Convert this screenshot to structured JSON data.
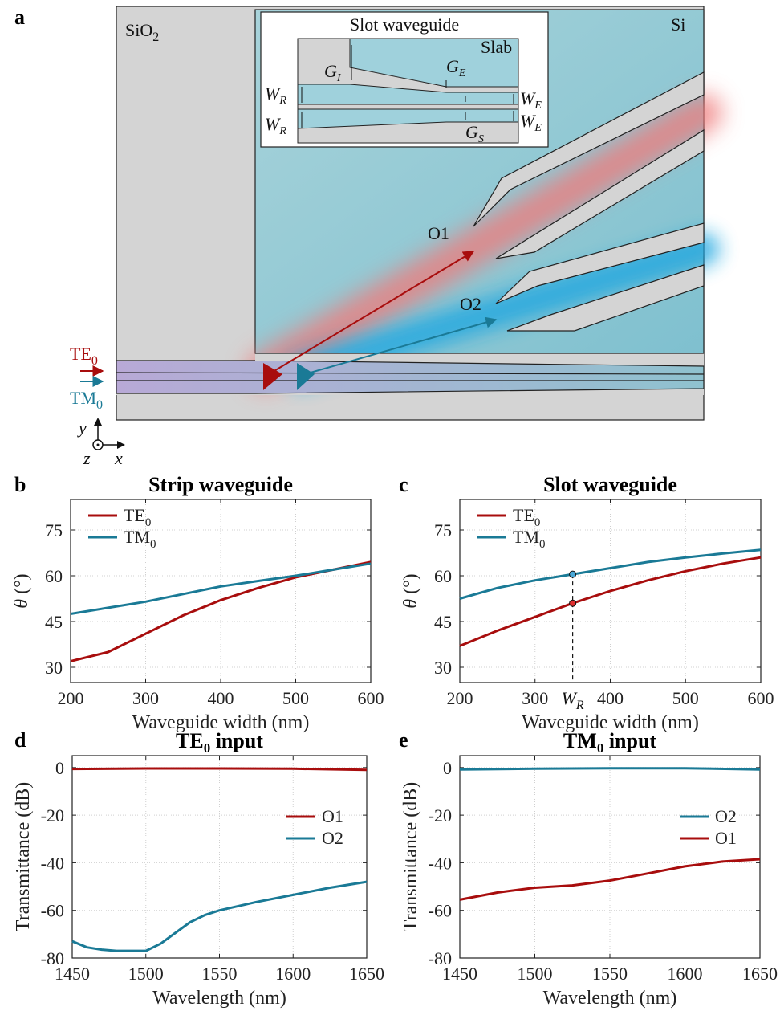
{
  "panels": {
    "a": "a",
    "b": "b",
    "c": "c",
    "d": "d",
    "e": "e"
  },
  "schematic": {
    "sio2": "SiO",
    "sio2_sub": "2",
    "si": "Si",
    "inset_title": "Slot waveguide",
    "slab": "Slab",
    "gi": "G",
    "gi_sub": "I",
    "ge": "G",
    "ge_sub": "E",
    "gs": "G",
    "gs_sub": "S",
    "wr": "W",
    "wr_sub": "R",
    "we": "W",
    "we_sub": "E",
    "o1": "O1",
    "o2": "O2",
    "te_in": "TE",
    "te_in_sub": "0",
    "tm_in": "TM",
    "tm_in_sub": "0",
    "axis_y": "y",
    "axis_z": "z",
    "axis_x": "x"
  },
  "colors": {
    "te": "#a80d0d",
    "tm": "#1a7a96",
    "si_fill": "#8ec8d4",
    "sio2_fill": "#d4d4d4",
    "grid": "#d0d0d0"
  },
  "chart_data": [
    {
      "id": "b",
      "type": "line",
      "title": "Strip waveguide",
      "xlabel": "Waveguide width (nm)",
      "ylabel": "θ (°)",
      "xlim": [
        200,
        600
      ],
      "ylim": [
        25,
        85
      ],
      "xticks": [
        200,
        300,
        400,
        500,
        600
      ],
      "yticks": [
        30,
        45,
        60,
        75
      ],
      "grid": true,
      "legend": "top-left",
      "series": [
        {
          "name": "TE",
          "name_sub": "0",
          "color": "#a80d0d",
          "x": [
            200,
            250,
            300,
            350,
            400,
            450,
            500,
            550,
            600
          ],
          "y": [
            32,
            35,
            41,
            47,
            52,
            56,
            59.5,
            62,
            64.5
          ]
        },
        {
          "name": "TM",
          "name_sub": "0",
          "color": "#1a7a96",
          "x": [
            200,
            250,
            300,
            350,
            400,
            450,
            500,
            550,
            600
          ],
          "y": [
            47.5,
            49.5,
            51.5,
            54,
            56.5,
            58.3,
            60,
            62,
            64
          ]
        }
      ]
    },
    {
      "id": "c",
      "type": "line",
      "title": "Slot waveguide",
      "xlabel": "Waveguide width (nm)",
      "ylabel": "θ (°)",
      "xlim": [
        200,
        600
      ],
      "ylim": [
        25,
        85
      ],
      "xticks": [
        200,
        300,
        400,
        500,
        600
      ],
      "xticklabels": [
        "200",
        "300",
        "400",
        "500",
        "600"
      ],
      "yticks": [
        30,
        45,
        60,
        75
      ],
      "grid": true,
      "legend": "top-left",
      "marker_x": 350,
      "marker_label": "W",
      "marker_label_sub": "R",
      "series": [
        {
          "name": "TE",
          "name_sub": "0",
          "color": "#a80d0d",
          "x": [
            200,
            250,
            300,
            350,
            400,
            450,
            500,
            550,
            600
          ],
          "y": [
            37,
            42,
            46.5,
            51,
            55,
            58.5,
            61.5,
            64,
            66
          ]
        },
        {
          "name": "TM",
          "name_sub": "0",
          "color": "#1a7a96",
          "x": [
            200,
            250,
            300,
            350,
            400,
            450,
            500,
            550,
            600
          ],
          "y": [
            52.5,
            56,
            58.5,
            60.5,
            62.5,
            64.5,
            66,
            67.3,
            68.5
          ]
        }
      ]
    },
    {
      "id": "d",
      "type": "line",
      "title": "TE",
      "title_sub": "0",
      "title_rest": " input",
      "xlabel": "Wavelength (nm)",
      "ylabel": "Transmittance (dB)",
      "xlim": [
        1450,
        1650
      ],
      "ylim": [
        -80,
        5
      ],
      "xticks": [
        1450,
        1500,
        1550,
        1600,
        1650
      ],
      "yticks": [
        -80,
        -60,
        -40,
        -20,
        0
      ],
      "grid": true,
      "legend": "right",
      "series": [
        {
          "name": "O1",
          "color": "#a80d0d",
          "x": [
            1450,
            1500,
            1550,
            1600,
            1650
          ],
          "y": [
            -0.6,
            -0.4,
            -0.4,
            -0.5,
            -1.0
          ]
        },
        {
          "name": "O2",
          "color": "#1a7a96",
          "x": [
            1450,
            1460,
            1470,
            1480,
            1490,
            1500,
            1510,
            1520,
            1530,
            1540,
            1550,
            1575,
            1600,
            1625,
            1650
          ],
          "y": [
            -73,
            -75.5,
            -76.5,
            -77,
            -77,
            -77,
            -74,
            -69.5,
            -65,
            -62,
            -60,
            -56.5,
            -53.5,
            -50.5,
            -48
          ]
        }
      ]
    },
    {
      "id": "e",
      "type": "line",
      "title": "TM",
      "title_sub": "0",
      "title_rest": " input",
      "xlabel": "Wavelength (nm)",
      "ylabel": "Transmittance (dB)",
      "xlim": [
        1450,
        1650
      ],
      "ylim": [
        -80,
        5
      ],
      "xticks": [
        1450,
        1500,
        1550,
        1600,
        1650
      ],
      "yticks": [
        -80,
        -60,
        -40,
        -20,
        0
      ],
      "grid": true,
      "legend": "right",
      "series": [
        {
          "name": "O2",
          "color": "#1a7a96",
          "x": [
            1450,
            1500,
            1550,
            1600,
            1650
          ],
          "y": [
            -0.8,
            -0.5,
            -0.3,
            -0.3,
            -0.8
          ]
        },
        {
          "name": "O1",
          "color": "#a80d0d",
          "x": [
            1450,
            1475,
            1500,
            1525,
            1550,
            1575,
            1600,
            1625,
            1650
          ],
          "y": [
            -55.5,
            -52.5,
            -50.5,
            -49.5,
            -47.5,
            -44.5,
            -41.5,
            -39.5,
            -38.5
          ]
        }
      ]
    }
  ]
}
